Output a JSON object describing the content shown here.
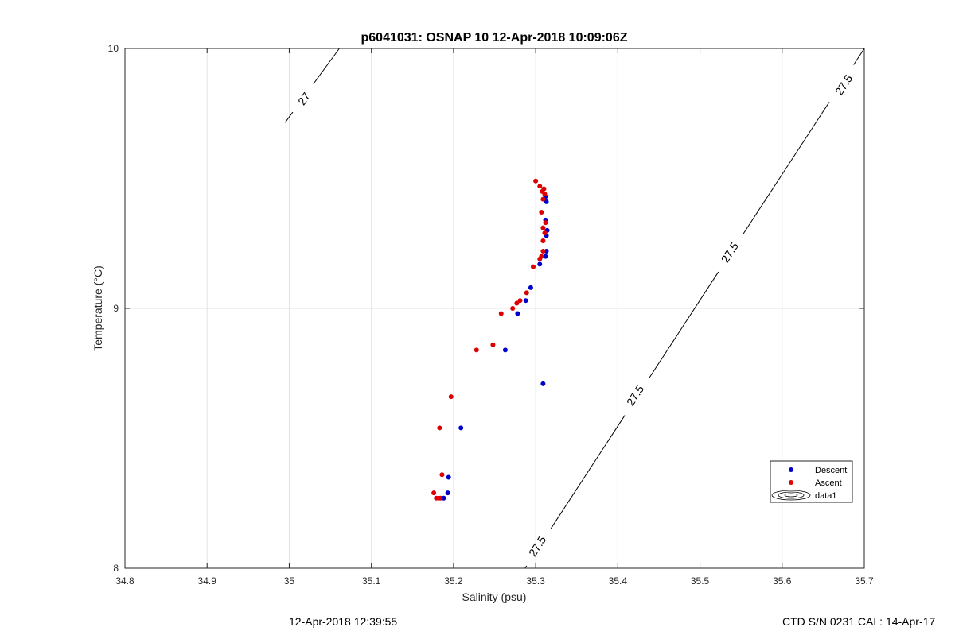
{
  "chart_data": {
    "type": "scatter",
    "title": "p6041031: OSNAP 10 12-Apr-2018 10:09:06Z",
    "xlabel": "Salinity (psu)",
    "ylabel": "Temperature (°C)",
    "xlim": [
      34.8,
      35.7
    ],
    "ylim": [
      8,
      10
    ],
    "x_ticks": [
      "34.8",
      "34.9",
      "35",
      "35.1",
      "35.2",
      "35.3",
      "35.4",
      "35.5",
      "35.6",
      "35.7"
    ],
    "y_ticks": [
      "8",
      "9",
      "10"
    ],
    "grid": true,
    "legend_position": "lower-right",
    "series": [
      {
        "name": "Descent",
        "color": "#0000cc",
        "points": [
          {
            "x": 35.188,
            "y": 8.27
          },
          {
            "x": 35.193,
            "y": 8.29
          },
          {
            "x": 35.194,
            "y": 8.35
          },
          {
            "x": 35.209,
            "y": 8.54
          },
          {
            "x": 35.263,
            "y": 8.84
          },
          {
            "x": 35.278,
            "y": 8.98
          },
          {
            "x": 35.288,
            "y": 9.03
          },
          {
            "x": 35.294,
            "y": 9.08
          },
          {
            "x": 35.305,
            "y": 9.17
          },
          {
            "x": 35.312,
            "y": 9.2
          },
          {
            "x": 35.313,
            "y": 9.22
          },
          {
            "x": 35.313,
            "y": 9.28
          },
          {
            "x": 35.314,
            "y": 9.3
          },
          {
            "x": 35.312,
            "y": 9.34
          },
          {
            "x": 35.313,
            "y": 9.41
          },
          {
            "x": 35.312,
            "y": 9.43
          },
          {
            "x": 35.309,
            "y": 8.71
          }
        ]
      },
      {
        "name": "Ascent",
        "color": "#dd0000",
        "points": [
          {
            "x": 35.176,
            "y": 8.29
          },
          {
            "x": 35.179,
            "y": 8.27
          },
          {
            "x": 35.182,
            "y": 8.27
          },
          {
            "x": 35.184,
            "y": 8.27
          },
          {
            "x": 35.186,
            "y": 8.36
          },
          {
            "x": 35.183,
            "y": 8.54
          },
          {
            "x": 35.197,
            "y": 8.66
          },
          {
            "x": 35.228,
            "y": 8.84
          },
          {
            "x": 35.248,
            "y": 8.86
          },
          {
            "x": 35.258,
            "y": 8.98
          },
          {
            "x": 35.272,
            "y": 9.0
          },
          {
            "x": 35.277,
            "y": 9.02
          },
          {
            "x": 35.281,
            "y": 9.03
          },
          {
            "x": 35.289,
            "y": 9.06
          },
          {
            "x": 35.297,
            "y": 9.16
          },
          {
            "x": 35.305,
            "y": 9.19
          },
          {
            "x": 35.307,
            "y": 9.2
          },
          {
            "x": 35.309,
            "y": 9.22
          },
          {
            "x": 35.309,
            "y": 9.26
          },
          {
            "x": 35.311,
            "y": 9.29
          },
          {
            "x": 35.309,
            "y": 9.31
          },
          {
            "x": 35.312,
            "y": 9.33
          },
          {
            "x": 35.307,
            "y": 9.37
          },
          {
            "x": 35.309,
            "y": 9.42
          },
          {
            "x": 35.311,
            "y": 9.44
          },
          {
            "x": 35.308,
            "y": 9.45
          },
          {
            "x": 35.31,
            "y": 9.46
          },
          {
            "x": 35.305,
            "y": 9.47
          },
          {
            "x": 35.3,
            "y": 9.49
          }
        ]
      }
    ],
    "contours": [
      {
        "name": "data1",
        "label": "27",
        "points": [
          {
            "x": 34.995,
            "y": 9.715
          },
          {
            "x": 35.061,
            "y": 10.0
          }
        ],
        "labels": [
          {
            "x": 35.018,
            "y": 9.807
          }
        ]
      },
      {
        "name": "data1",
        "label": "27.5",
        "points": [
          {
            "x": 35.287,
            "y": 8.0
          },
          {
            "x": 35.7,
            "y": 10.0
          }
        ],
        "labels": [
          {
            "x": 35.302,
            "y": 8.085
          },
          {
            "x": 35.421,
            "y": 8.665
          },
          {
            "x": 35.536,
            "y": 9.215
          },
          {
            "x": 35.675,
            "y": 9.86
          }
        ]
      }
    ],
    "legend": [
      {
        "label": "Descent",
        "marker": "dot",
        "color": "#0000cc"
      },
      {
        "label": "Ascent",
        "marker": "dot",
        "color": "#dd0000"
      },
      {
        "label": "data1",
        "marker": "contour",
        "color": "#000000"
      }
    ]
  },
  "footer": {
    "timestamp": "12-Apr-2018 12:39:55",
    "ctd_info": "CTD S/N 0231  CAL: 14-Apr-17"
  }
}
